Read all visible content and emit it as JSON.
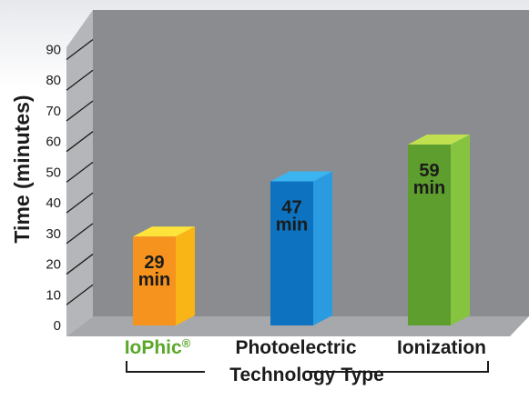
{
  "chart_data": {
    "type": "bar",
    "title": "",
    "ylabel": "Time (minutes)",
    "xlabel": "Technology Type",
    "ylim": [
      0,
      90
    ],
    "yticks": [
      0,
      10,
      20,
      30,
      40,
      50,
      60,
      70,
      80,
      90
    ],
    "grid": false,
    "categories": [
      "IoPhic",
      "Photoelectric",
      "Ionization"
    ],
    "values": [
      29,
      47,
      59
    ],
    "value_unit": "min",
    "trademark_mark": "®",
    "colors": {
      "plot_back": "#8a8c8f",
      "plot_side": "#b5b6b9",
      "floor": "#a7a8ab",
      "iophic_front": "#f6921e",
      "iophic_side": "#f9b516",
      "iophic_top": "#fde33a",
      "photo_front": "#0d72c0",
      "photo_side": "#2a9be0",
      "photo_top": "#3bb4f0",
      "ion_front": "#5d9e2e",
      "ion_side": "#86c440",
      "ion_top": "#c0e050",
      "brand_green": "#5aa82a"
    }
  }
}
